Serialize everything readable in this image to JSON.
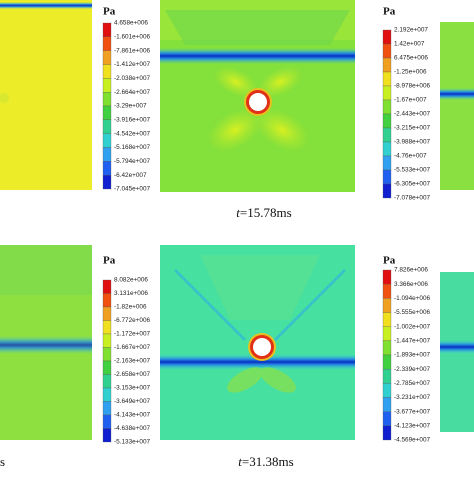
{
  "panels": [
    {
      "legend": {
        "unit": "Pa",
        "labels": [
          "4.658e+006",
          "-1.601e+006",
          "-7.861e+006",
          "-1.412e+007",
          "-2.038e+007",
          "-2.664e+007",
          "-3.29e+007",
          "-3.916e+007",
          "-4.542e+007",
          "-5.168e+007",
          "-5.794e+007",
          "-6.42e+007",
          "-7.045e+007"
        ]
      }
    },
    {
      "legend": {
        "unit": "Pa",
        "labels": [
          "2.192e+007",
          "1.42e+007",
          "6.475e+006",
          "-1.25e+006",
          "-8.978e+006",
          "-1.67e+007",
          "-2.443e+007",
          "-3.215e+007",
          "-3.988e+007",
          "-4.76e+007",
          "-5.533e+007",
          "-6.305e+007",
          "-7.078e+007"
        ]
      }
    },
    {
      "legend": {
        "unit": "Pa",
        "labels": [
          "8.082e+006",
          "3.131e+006",
          "-1.82e+006",
          "-6.772e+006",
          "-1.172e+007",
          "-1.667e+007",
          "-2.163e+007",
          "-2.658e+007",
          "-3.153e+007",
          "-3.649e+007",
          "-4.143e+007",
          "-4.638e+007",
          "-5.133e+007"
        ]
      }
    },
    {
      "legend": {
        "unit": "Pa",
        "labels": [
          "7.826e+006",
          "3.366e+006",
          "-1.094e+006",
          "-5.555e+006",
          "-1.002e+007",
          "-1.447e+007",
          "-1.893e+007",
          "-2.339e+007",
          "-2.785e+007",
          "-3.231e+007",
          "-3.677e+007",
          "-4.123e+007",
          "-4.569e+007"
        ]
      }
    }
  ],
  "captions": [
    {
      "variable": "t",
      "value": "=15.78ms"
    },
    {
      "variable": "t",
      "value": "=31.38ms"
    }
  ],
  "fragment": "s"
}
